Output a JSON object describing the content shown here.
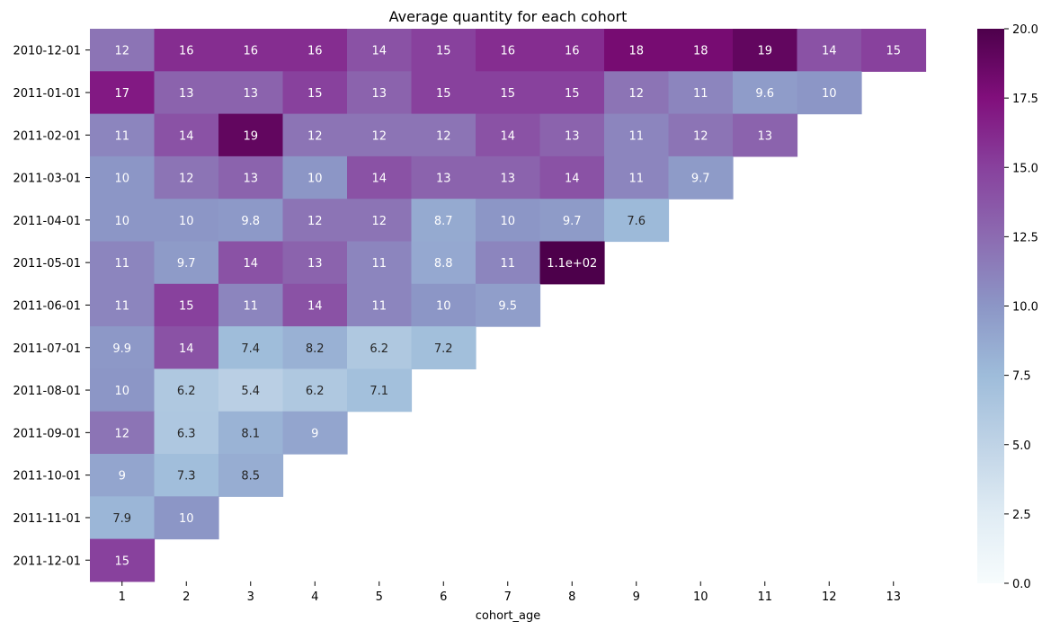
{
  "chart_data": {
    "type": "heatmap",
    "title": "Average quantity for each cohort",
    "xlabel": "cohort_age",
    "ylabel": "",
    "x_categories": [
      "1",
      "2",
      "3",
      "4",
      "5",
      "6",
      "7",
      "8",
      "9",
      "10",
      "11",
      "12",
      "13"
    ],
    "y_categories": [
      "2010-12-01",
      "2011-01-01",
      "2011-02-01",
      "2011-03-01",
      "2011-04-01",
      "2011-05-01",
      "2011-06-01",
      "2011-07-01",
      "2011-08-01",
      "2011-09-01",
      "2011-10-01",
      "2011-11-01",
      "2011-12-01"
    ],
    "values": [
      [
        12,
        16,
        16,
        16,
        14,
        15,
        16,
        16,
        18,
        18,
        19,
        14,
        15
      ],
      [
        17,
        13,
        13,
        15,
        13,
        15,
        15,
        15,
        12,
        11,
        9.6,
        10,
        null
      ],
      [
        11,
        14,
        19,
        12,
        12,
        12,
        14,
        13,
        11,
        12,
        13,
        null,
        null
      ],
      [
        10,
        12,
        13,
        10,
        14,
        13,
        13,
        14,
        11,
        9.7,
        null,
        null,
        null
      ],
      [
        10,
        10,
        9.8,
        12,
        12,
        8.7,
        10,
        9.7,
        7.6,
        null,
        null,
        null,
        null
      ],
      [
        11,
        9.7,
        14,
        13,
        11,
        8.8,
        11,
        110,
        null,
        null,
        null,
        null,
        null
      ],
      [
        11,
        15,
        11,
        14,
        11,
        10,
        9.5,
        null,
        null,
        null,
        null,
        null,
        null
      ],
      [
        9.9,
        14,
        7.4,
        8.2,
        6.2,
        7.2,
        null,
        null,
        null,
        null,
        null,
        null,
        null
      ],
      [
        10,
        6.2,
        5.4,
        6.2,
        7.1,
        null,
        null,
        null,
        null,
        null,
        null,
        null,
        null
      ],
      [
        12,
        6.3,
        8.1,
        9,
        null,
        null,
        null,
        null,
        null,
        null,
        null,
        null,
        null
      ],
      [
        9,
        7.3,
        8.5,
        null,
        null,
        null,
        null,
        null,
        null,
        null,
        null,
        null,
        null
      ],
      [
        7.9,
        10,
        null,
        null,
        null,
        null,
        null,
        null,
        null,
        null,
        null,
        null,
        null
      ],
      [
        15,
        null,
        null,
        null,
        null,
        null,
        null,
        null,
        null,
        null,
        null,
        null,
        null
      ]
    ],
    "labels": [
      [
        "12",
        "16",
        "16",
        "16",
        "14",
        "15",
        "16",
        "16",
        "18",
        "18",
        "19",
        "14",
        "15"
      ],
      [
        "17",
        "13",
        "13",
        "15",
        "13",
        "15",
        "15",
        "15",
        "12",
        "11",
        "9.6",
        "10",
        ""
      ],
      [
        "11",
        "14",
        "19",
        "12",
        "12",
        "12",
        "14",
        "13",
        "11",
        "12",
        "13",
        "",
        ""
      ],
      [
        "10",
        "12",
        "13",
        "10",
        "14",
        "13",
        "13",
        "14",
        "11",
        "9.7",
        "",
        "",
        ""
      ],
      [
        "10",
        "10",
        "9.8",
        "12",
        "12",
        "8.7",
        "10",
        "9.7",
        "7.6",
        "",
        "",
        "",
        ""
      ],
      [
        "11",
        "9.7",
        "14",
        "13",
        "11",
        "8.8",
        "11",
        "1.1e+02",
        "",
        "",
        "",
        "",
        ""
      ],
      [
        "11",
        "15",
        "11",
        "14",
        "11",
        "10",
        "9.5",
        "",
        "",
        "",
        "",
        "",
        ""
      ],
      [
        "9.9",
        "14",
        "7.4",
        "8.2",
        "6.2",
        "7.2",
        "",
        "",
        "",
        "",
        "",
        "",
        ""
      ],
      [
        "10",
        "6.2",
        "5.4",
        "6.2",
        "7.1",
        "",
        "",
        "",
        "",
        "",
        "",
        "",
        ""
      ],
      [
        "12",
        "6.3",
        "8.1",
        "9",
        "",
        "",
        "",
        "",
        "",
        "",
        "",
        "",
        ""
      ],
      [
        "9",
        "7.3",
        "8.5",
        "",
        "",
        "",
        "",
        "",
        "",
        "",
        "",
        "",
        ""
      ],
      [
        "7.9",
        "10",
        "",
        "",
        "",
        "",
        "",
        "",
        "",
        "",
        "",
        "",
        ""
      ],
      [
        "15",
        "",
        "",
        "",
        "",
        "",
        "",
        "",
        "",
        "",
        "",
        "",
        ""
      ]
    ],
    "colorbar": {
      "range": [
        0,
        20
      ],
      "ticks": [
        0,
        2.5,
        5,
        7.5,
        10,
        12.5,
        15,
        17.5,
        20
      ],
      "tick_labels": [
        "0.0",
        "2.5",
        "5.0",
        "7.5",
        "10.0",
        "12.5",
        "15.0",
        "17.5",
        "20.0"
      ],
      "colormap": "BuPu",
      "colors": [
        "#f7fcfd",
        "#e0ecf4",
        "#bfd3e6",
        "#9ebcda",
        "#8c96c6",
        "#8c6bb1",
        "#88419d",
        "#810f7c",
        "#4d004b"
      ]
    }
  }
}
